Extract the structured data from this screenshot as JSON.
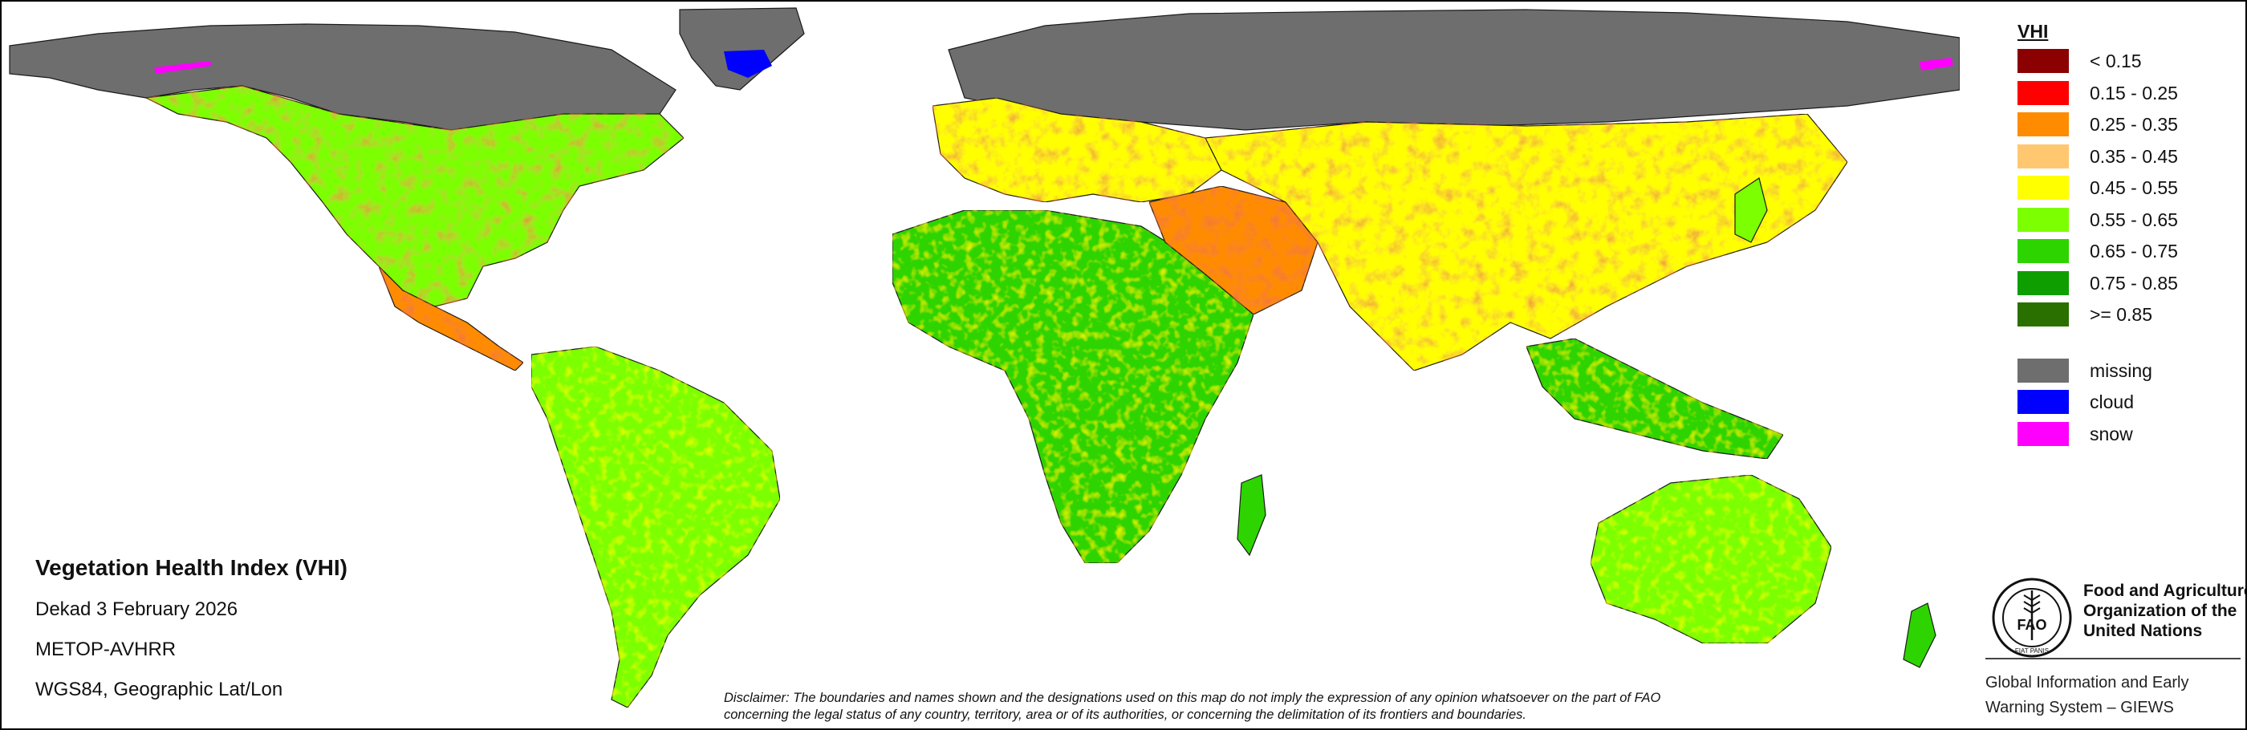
{
  "map": {
    "title": "Vegetation Health Index (VHI)",
    "period": "Dekad 3 February 2026",
    "sensor": "METOP-AVHRR",
    "projection": "WGS84, Geographic Lat/Lon",
    "colors": {
      "ocean": "#ffffff",
      "border": "#1a1a1a"
    }
  },
  "legend": {
    "title": "VHI",
    "classes": [
      {
        "label": "< 0.15",
        "color": "#8b0000"
      },
      {
        "label": "0.15 - 0.25",
        "color": "#ff0000"
      },
      {
        "label": "0.25 - 0.35",
        "color": "#ff8c00"
      },
      {
        "label": "0.35 - 0.45",
        "color": "#ffc870"
      },
      {
        "label": "0.45 - 0.55",
        "color": "#ffff00"
      },
      {
        "label": "0.55 - 0.65",
        "color": "#7cff00"
      },
      {
        "label": "0.65 - 0.75",
        "color": "#2ed400"
      },
      {
        "label": "0.75 - 0.85",
        "color": "#0e9e00"
      },
      {
        "label": ">= 0.85",
        "color": "#2a7000"
      }
    ],
    "other": [
      {
        "label": "missing",
        "color": "#6e6e6e"
      },
      {
        "label": "cloud",
        "color": "#0000ff"
      },
      {
        "label": "snow",
        "color": "#ff00ff"
      }
    ]
  },
  "disclaimer": {
    "line1": "Disclaimer: The boundaries and names shown and the designations used on this map do not imply the expression of any opinion whatsoever on the part of FAO",
    "line2": "concerning the legal status of any country, territory, area or of its authorities, or concerning the delimitation of its frontiers and boundaries."
  },
  "org": {
    "name_line1": "Food and Agriculture",
    "name_line2": "Organization of the",
    "name_line3": "United Nations",
    "logo_text": "FAO",
    "logo_motto": "FIAT PANIS",
    "giews_line1": "Global Information and Early",
    "giews_line2": "Warning System – GIEWS"
  }
}
